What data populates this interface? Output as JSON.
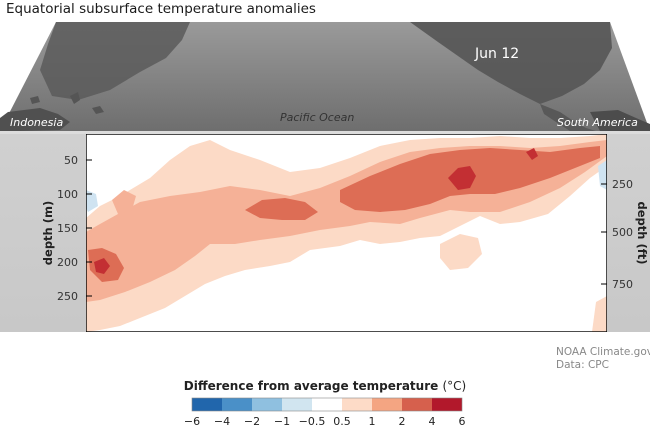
{
  "title": "Equatorial subsurface temperature anomalies",
  "map": {
    "date_label": "Jun 12",
    "region_west": "Indonesia",
    "region_center": "Pacific Ocean",
    "region_east": "South America"
  },
  "credit": {
    "line1": "NOAA Climate.gov",
    "line2": "Data: CPC"
  },
  "colorbar": {
    "title": "Difference from average temperature",
    "unit": "(°C)",
    "ticks": [
      "−6",
      "−4",
      "−2",
      "−1",
      "−0.5",
      "0.5",
      "1",
      "2",
      "4",
      "6"
    ],
    "colors": [
      "#2166ac",
      "#4a90c8",
      "#8fc0e0",
      "#d1e5f0",
      "#ffffff",
      "#fddbc7",
      "#f4a582",
      "#d6604d",
      "#b2182b"
    ]
  },
  "chart_data": {
    "type": "heatmap",
    "title": "Equatorial subsurface temperature anomalies",
    "ylabel_left": "depth (m)",
    "ylabel_right": "depth (ft)",
    "y_ticks_m": [
      50,
      100,
      150,
      200,
      250
    ],
    "y_ticks_ft": [
      250,
      500,
      750
    ],
    "ylim_m": [
      300,
      0
    ],
    "x_range_labels": [
      "Indonesia",
      "Pacific Ocean",
      "South America"
    ],
    "grid": false,
    "colors": {
      "level_0.5": "#fcdac6",
      "level_1": "#f5b197",
      "level_2": "#dd6d55",
      "level_4": "#c32f33",
      "neg_weak": "#cfe3f1",
      "neg_mid": "#a6cce4"
    },
    "description": ""
  }
}
